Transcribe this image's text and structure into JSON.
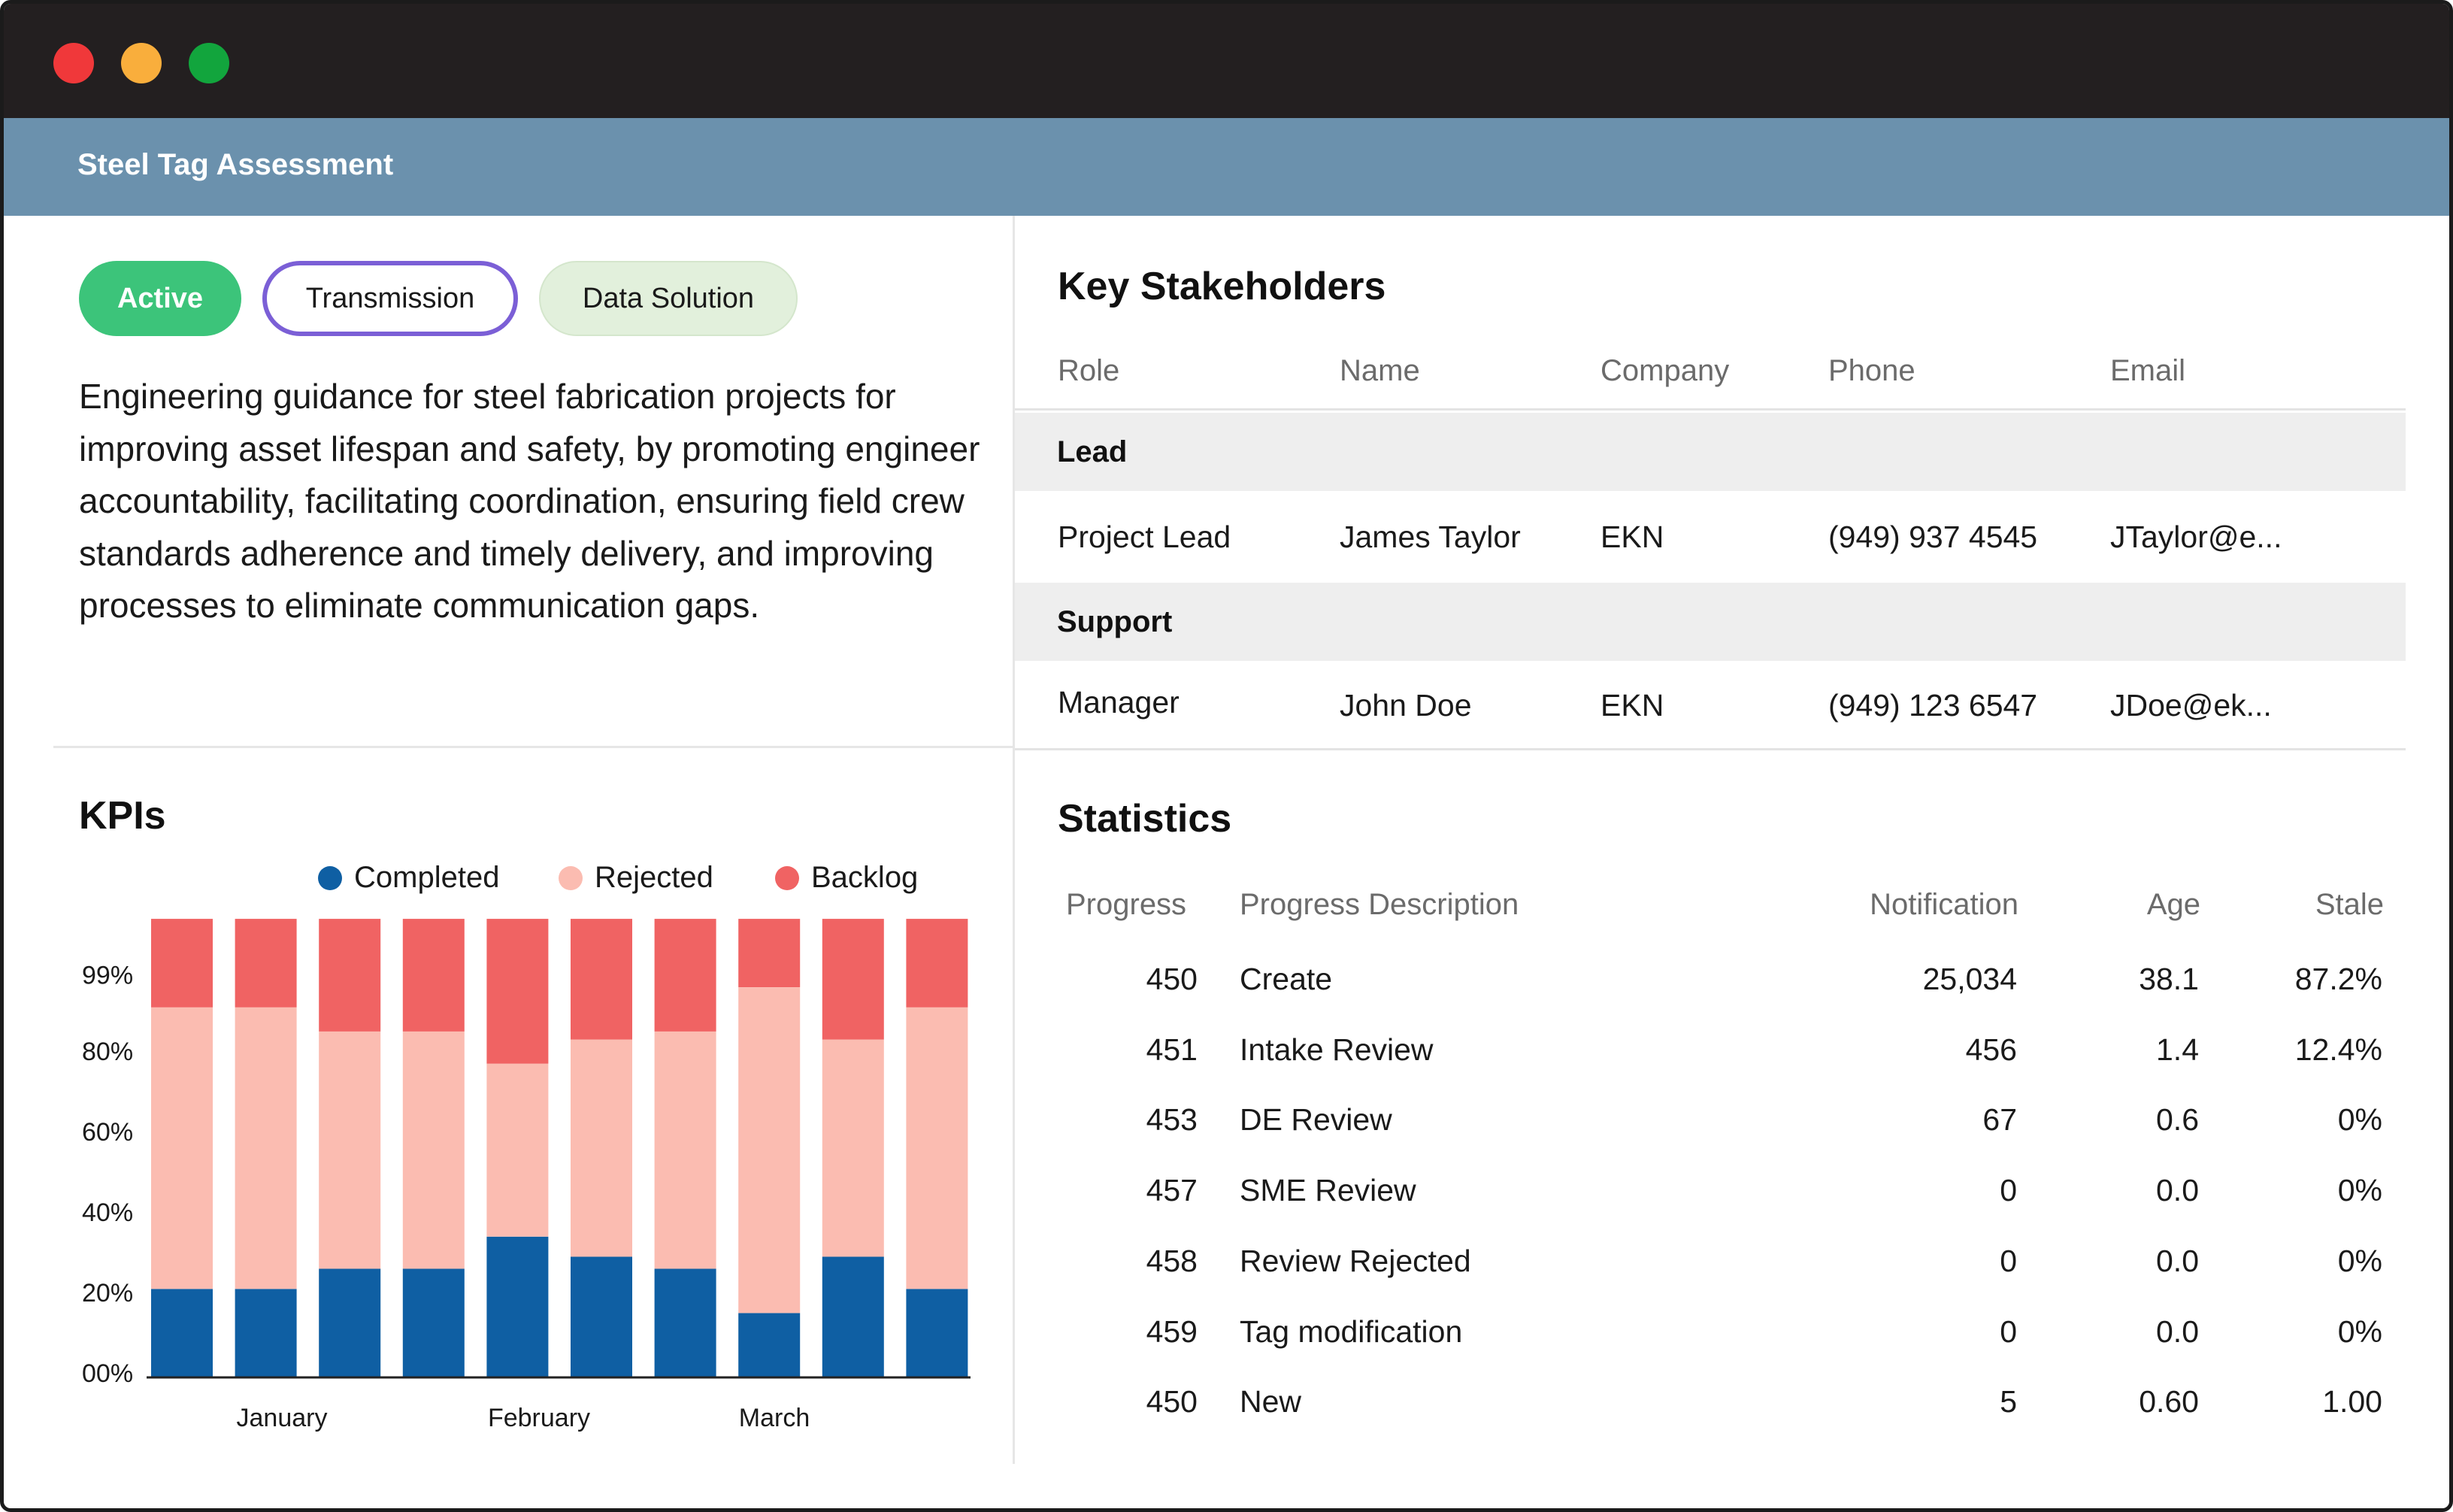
{
  "window": {
    "controls": [
      "close",
      "minimize",
      "maximize"
    ]
  },
  "app": {
    "title": "Steel Tag Assessment"
  },
  "tags": {
    "active": "Active",
    "transmission": "Transmission",
    "solution": "Data Solution"
  },
  "description": "Engineering guidance for steel fabrication projects for improving asset lifespan and safety, by promoting engineer accountability, facilitating coordination, ensuring field crew standards adherence and timely delivery, and improving processes to eliminate communication gaps.",
  "kpis": {
    "title": "KPIs",
    "legend": [
      {
        "label": "Completed",
        "color": "#0f5fa3"
      },
      {
        "label": "Rejected",
        "color": "#fbbcb1"
      },
      {
        "label": "Backlog",
        "color": "#f06363"
      }
    ]
  },
  "chart_data": {
    "type": "bar",
    "stacked": true,
    "y_tick_labels": [
      "00%",
      "20%",
      "40%",
      "60%",
      "80%",
      "99%"
    ],
    "y_tick_values": [
      0,
      20,
      40,
      60,
      80,
      99
    ],
    "ylim": [
      0,
      114
    ],
    "x_group_labels": [
      "January",
      "February",
      "March"
    ],
    "bar_count": 10,
    "series": [
      {
        "name": "Completed",
        "color": "#0f5fa3",
        "values": [
          22,
          22,
          27,
          27,
          35,
          30,
          27,
          16,
          30,
          22
        ]
      },
      {
        "name": "Rejected",
        "color": "#fbbcb1",
        "values": [
          70,
          70,
          59,
          59,
          43,
          54,
          59,
          81,
          54,
          70
        ]
      },
      {
        "name": "Backlog",
        "color": "#f06363",
        "values": [
          22,
          22,
          28,
          28,
          36,
          30,
          28,
          17,
          30,
          22
        ]
      }
    ],
    "grid": false,
    "legend_position": "top"
  },
  "stakeholders": {
    "title": "Key Stakeholders",
    "columns": [
      "Role",
      "Name",
      "Company",
      "Phone",
      "Email"
    ],
    "groups": [
      {
        "label": "Lead",
        "rows": [
          {
            "role": "Project Lead",
            "name": "James Taylor",
            "company": "EKN",
            "phone": "(949) 937 4545",
            "email": "JTaylor@e..."
          }
        ]
      },
      {
        "label": "Support",
        "rows": [
          {
            "role": "Manager",
            "name": "John Doe",
            "company": "EKN",
            "phone": "(949) 123 6547",
            "email": "JDoe@ek..."
          }
        ]
      }
    ]
  },
  "statistics": {
    "title": "Statistics",
    "columns": [
      "Progress",
      "Progress Description",
      "Notification",
      "Age",
      "Stale"
    ],
    "rows": [
      {
        "progress": "450",
        "description": "Create",
        "notification": "25,034",
        "age": "38.1",
        "stale": "87.2%"
      },
      {
        "progress": "451",
        "description": "Intake Review",
        "notification": "456",
        "age": "1.4",
        "stale": "12.4%"
      },
      {
        "progress": "453",
        "description": "DE Review",
        "notification": "67",
        "age": "0.6",
        "stale": "0%"
      },
      {
        "progress": "457",
        "description": "SME Review",
        "notification": "0",
        "age": "0.0",
        "stale": "0%"
      },
      {
        "progress": "458",
        "description": "Review Rejected",
        "notification": "0",
        "age": "0.0",
        "stale": "0%"
      },
      {
        "progress": "459",
        "description": "Tag modification",
        "notification": "0",
        "age": "0.0",
        "stale": "0%"
      },
      {
        "progress": "450",
        "description": "New",
        "notification": "5",
        "age": "0.60",
        "stale": "1.00"
      }
    ]
  }
}
